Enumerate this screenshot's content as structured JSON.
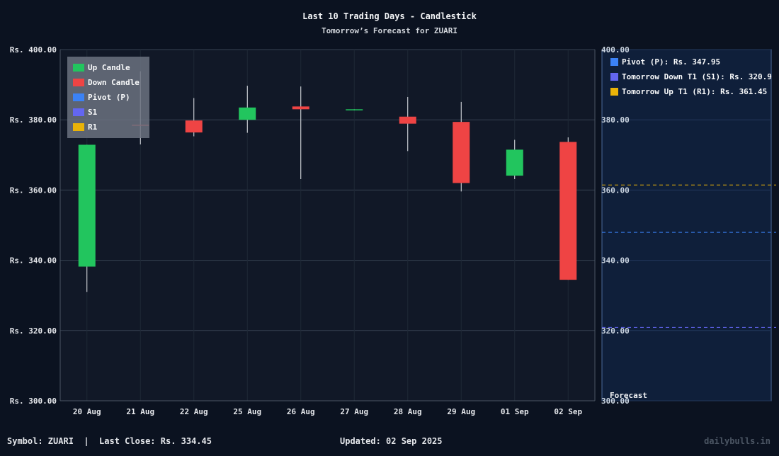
{
  "title": "Last 10 Trading Days - Candlestick",
  "subtitle": "Tomorrow’s Forecast for ZUARI",
  "chart_data": {
    "type": "candlestick",
    "title": "Last 10 Trading Days - Candlestick",
    "subtitle": "Tomorrow’s Forecast for ZUARI",
    "categories": [
      "20 Aug",
      "21 Aug",
      "22 Aug",
      "25 Aug",
      "26 Aug",
      "27 Aug",
      "28 Aug",
      "29 Aug",
      "01 Sep",
      "02 Sep"
    ],
    "candles": [
      {
        "open": 338.2,
        "high": 372.9,
        "low": 331.0,
        "close": 372.9
      },
      {
        "open": 378.6,
        "high": 393.8,
        "low": 373.0,
        "close": 378.5
      },
      {
        "open": 379.8,
        "high": 386.2,
        "low": 375.3,
        "close": 376.4
      },
      {
        "open": 380.0,
        "high": 389.7,
        "low": 376.3,
        "close": 383.5
      },
      {
        "open": 383.8,
        "high": 389.5,
        "low": 363.1,
        "close": 383.0
      },
      {
        "open": 382.7,
        "high": 383.0,
        "low": 382.7,
        "close": 383.0
      },
      {
        "open": 380.9,
        "high": 386.5,
        "low": 371.1,
        "close": 378.9
      },
      {
        "open": 379.4,
        "high": 385.1,
        "low": 359.6,
        "close": 362.0
      },
      {
        "open": 364.1,
        "high": 374.3,
        "low": 363.1,
        "close": 371.5
      },
      {
        "open": 373.7,
        "high": 375.0,
        "low": 334.45,
        "close": 334.45
      }
    ],
    "ylim": [
      300,
      400
    ],
    "yticks": [
      "Rs. 400.00",
      "Rs. 380.00",
      "Rs. 360.00",
      "Rs. 340.00",
      "Rs. 320.00",
      "Rs. 300.00"
    ],
    "ytick_values": [
      400,
      380,
      360,
      340,
      320,
      300
    ],
    "right_axis_ticks": [
      "400.00",
      "380.00",
      "360.00",
      "340.00",
      "320.00",
      "300.00"
    ],
    "legend": [
      "Up Candle",
      "Down Candle",
      "Pivot (P)",
      "S1",
      "R1"
    ],
    "legend_placement": "top-left",
    "forecast": {
      "label": "Forecast",
      "lines": [
        {
          "label": "Pivot (P): Rs. 347.95",
          "value": 347.95,
          "color": "#3b82f6"
        },
        {
          "label": "Tomorrow Down T1 (S1): Rs. 320.9",
          "value": 320.9,
          "color": "#6366f1"
        },
        {
          "label": "Tomorrow Up T1 (R1): Rs. 361.45",
          "value": 361.45,
          "color": "#eab308"
        }
      ]
    },
    "colors": {
      "up": "#22c55e",
      "down": "#ef4444",
      "pivot": "#3b82f6",
      "s1": "#6366f1",
      "r1": "#eab308",
      "background": "#0b1220",
      "plot": "#111827",
      "forecast_panel": "#0f1f3a",
      "grid": "#374151",
      "text": "#e5e7eb"
    },
    "grid": true
  },
  "footer": {
    "symbol": "Symbol: ZUARI  |  Last Close: Rs. 334.45",
    "updated": "Updated: 02 Sep 2025",
    "brand": "dailybulls.in"
  }
}
